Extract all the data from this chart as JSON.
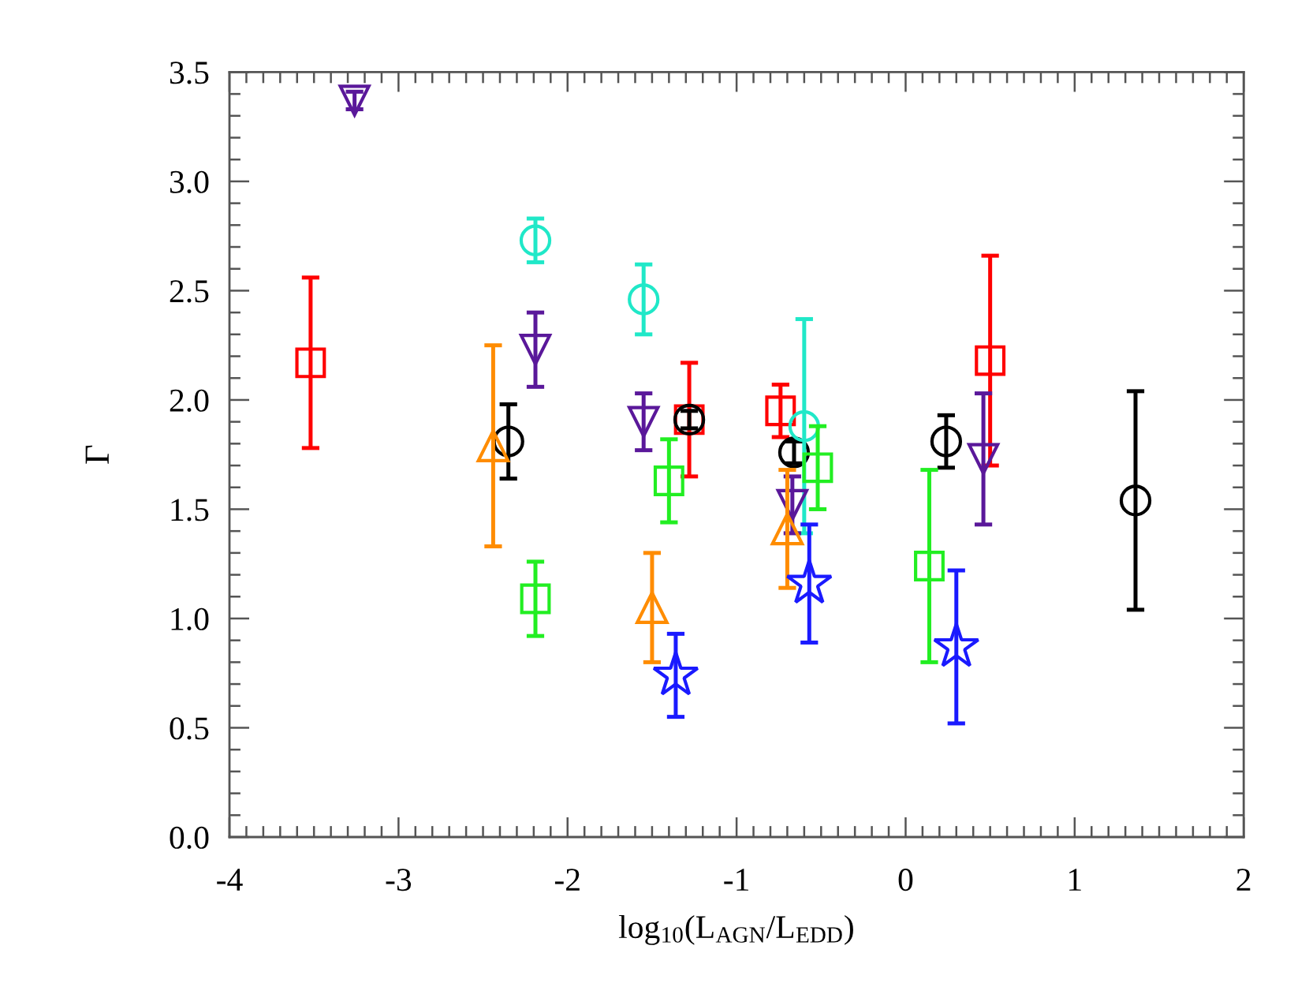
{
  "chart_data": {
    "type": "scatter",
    "xlabel": "log$_{10}$(L$_{AGN}$/L$_{EDD}$)",
    "ylabel": "Γ",
    "xlim": [
      -4,
      2
    ],
    "ylim": [
      0,
      3.5
    ],
    "xticks": [
      -4,
      {
        "value": -3.9,
        "label": null
      },
      {
        "value": -3.8,
        "label": null
      },
      {
        "value": -3.7,
        "label": null
      },
      {
        "value": -3.6,
        "label": null
      },
      {
        "value": -3.5,
        "label": null
      },
      {
        "value": -3.4,
        "label": null
      },
      {
        "value": -3.3,
        "label": null
      },
      {
        "value": -3.2,
        "label": null
      },
      {
        "value": -3.1,
        "label": null
      },
      -3,
      {
        "value": -2.9,
        "label": null
      },
      {
        "value": -2.8,
        "label": null
      },
      {
        "value": -2.7,
        "label": null
      },
      {
        "value": -2.6,
        "label": null
      },
      {
        "value": -2.5,
        "label": null
      },
      {
        "value": -2.4,
        "label": null
      },
      {
        "value": -2.3,
        "label": null
      },
      {
        "value": -2.2,
        "label": null
      },
      {
        "value": -2.1,
        "label": null
      },
      -2,
      {
        "value": -1.9,
        "label": null
      },
      {
        "value": -1.8,
        "label": null
      },
      {
        "value": -1.7,
        "label": null
      },
      {
        "value": -1.6,
        "label": null
      },
      {
        "value": -1.5,
        "label": null
      },
      {
        "value": -1.4,
        "label": null
      },
      {
        "value": -1.3,
        "label": null
      },
      {
        "value": -1.2,
        "label": null
      },
      {
        "value": -1.1,
        "label": null
      },
      -1,
      {
        "value": -0.9,
        "label": null
      },
      {
        "value": -0.8,
        "label": null
      },
      {
        "value": -0.7,
        "label": null
      },
      {
        "value": -0.6,
        "label": null
      },
      {
        "value": -0.5,
        "label": null
      },
      {
        "value": -0.4,
        "label": null
      },
      {
        "value": -0.3,
        "label": null
      },
      {
        "value": -0.2,
        "label": null
      },
      {
        "value": -0.1,
        "label": null
      },
      0,
      {
        "value": 0.1,
        "label": null
      },
      {
        "value": 0.2,
        "label": null
      },
      {
        "value": 0.3,
        "label": null
      },
      {
        "value": 0.4,
        "label": null
      },
      {
        "value": 0.5,
        "label": null
      },
      {
        "value": 0.6,
        "label": null
      },
      {
        "value": 0.7,
        "label": null
      },
      {
        "value": 0.8,
        "label": null
      },
      {
        "value": 0.9,
        "label": null
      },
      1,
      {
        "value": 1.1,
        "label": null
      },
      {
        "value": 1.2,
        "label": null
      },
      {
        "value": 1.3,
        "label": null
      },
      {
        "value": 1.4,
        "label": null
      },
      {
        "value": 1.5,
        "label": null
      },
      {
        "value": 1.6,
        "label": null
      },
      {
        "value": 1.7,
        "label": null
      },
      {
        "value": 1.8,
        "label": null
      },
      {
        "value": 1.9,
        "label": null
      },
      2
    ],
    "yticks": [
      {
        "value": 0,
        "label": "0.0"
      },
      {
        "value": 0.1,
        "label": null
      },
      {
        "value": 0.2,
        "label": null
      },
      {
        "value": 0.3,
        "label": null
      },
      {
        "value": 0.4,
        "label": null
      },
      {
        "value": 0.5,
        "label": "0.5"
      },
      {
        "value": 0.6,
        "label": null
      },
      {
        "value": 0.7,
        "label": null
      },
      {
        "value": 0.8,
        "label": null
      },
      {
        "value": 0.9,
        "label": null
      },
      {
        "value": 1,
        "label": "1.0"
      },
      {
        "value": 1.1,
        "label": null
      },
      {
        "value": 1.2,
        "label": null
      },
      {
        "value": 1.3,
        "label": null
      },
      {
        "value": 1.4,
        "label": null
      },
      {
        "value": 1.5,
        "label": "1.5"
      },
      {
        "value": 1.6,
        "label": null
      },
      {
        "value": 1.7,
        "label": null
      },
      {
        "value": 1.8,
        "label": null
      },
      {
        "value": 1.9,
        "label": null
      },
      {
        "value": 2,
        "label": "2.0"
      },
      {
        "value": 2.1,
        "label": null
      },
      {
        "value": 2.2,
        "label": null
      },
      {
        "value": 2.3,
        "label": null
      },
      {
        "value": 2.4,
        "label": null
      },
      {
        "value": 2.5,
        "label": "2.5"
      },
      {
        "value": 2.6,
        "label": null
      },
      {
        "value": 2.7,
        "label": null
      },
      {
        "value": 2.8,
        "label": null
      },
      {
        "value": 2.9,
        "label": null
      },
      {
        "value": 3,
        "label": "3.0"
      },
      {
        "value": 3.1,
        "label": null
      },
      {
        "value": 3.2,
        "label": null
      },
      {
        "value": 3.3,
        "label": null
      },
      {
        "value": 3.4,
        "label": null
      },
      {
        "value": 3.5,
        "label": "3.5"
      }
    ],
    "series": [
      {
        "color": "#ff0000",
        "marker": "square",
        "x": [
          -3.52,
          -1.28,
          -0.74,
          0.5
        ],
        "values": [
          2.17,
          1.91,
          1.95,
          2.18
        ],
        "errors": [
          0.39,
          0.26,
          0.12,
          0.48
        ]
      },
      {
        "color": "#000000",
        "marker": "circle",
        "x": [
          -2.35,
          -1.28,
          -0.66,
          0.24,
          1.36
        ],
        "values": [
          1.81,
          1.91,
          1.76,
          1.81,
          1.54
        ],
        "errors": [
          0.17,
          0.04,
          0.05,
          0.12,
          0.5
        ]
      },
      {
        "color": "#20e8c8",
        "marker": "circle",
        "x": [
          -2.19,
          -1.55,
          -0.6
        ],
        "values": [
          2.73,
          2.46,
          1.88
        ],
        "errors": [
          0.1,
          0.16,
          0.49
        ]
      },
      {
        "color": "#5a189a",
        "marker": "triangle_down",
        "x": [
          -3.26,
          -2.19,
          -1.55,
          -0.67,
          0.46
        ],
        "values": [
          3.37,
          2.23,
          1.9,
          1.52,
          1.73
        ],
        "errors": [
          0.04,
          0.17,
          0.13,
          0.13,
          0.3
        ]
      },
      {
        "color": "#ff8c00",
        "marker": "triangle",
        "x": [
          -2.44,
          -1.5,
          -0.7
        ],
        "values": [
          1.79,
          1.05,
          1.41
        ],
        "errors": [
          0.46,
          0.25,
          0.27
        ]
      },
      {
        "color": "#22ee22",
        "marker": "square",
        "x": [
          -2.19,
          -1.4,
          -0.52,
          0.14
        ],
        "values": [
          1.09,
          1.63,
          1.69,
          1.24
        ],
        "errors": [
          0.17,
          0.19,
          0.19,
          0.44
        ]
      },
      {
        "color": "#1a1aff",
        "marker": "star",
        "x": [
          -1.36,
          -0.57,
          0.3
        ],
        "values": [
          0.74,
          1.16,
          0.87
        ],
        "errors": [
          0.19,
          0.27,
          0.35
        ]
      }
    ]
  }
}
